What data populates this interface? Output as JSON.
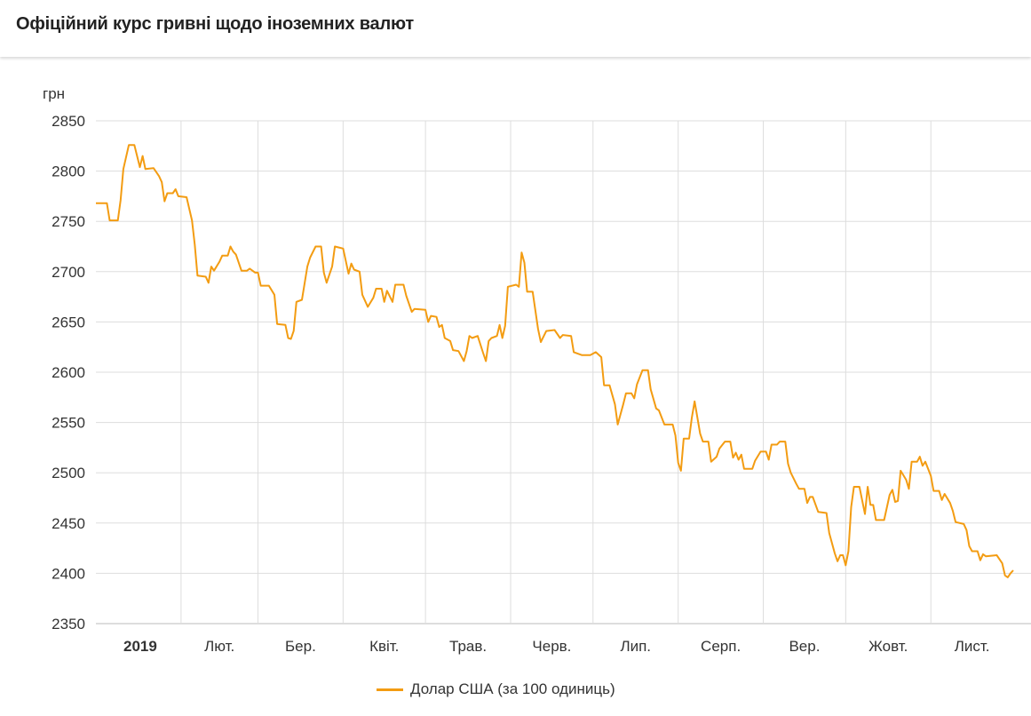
{
  "header": {
    "title": "Офіційний курс гривні щодо іноземних валют"
  },
  "chart_data": {
    "type": "line",
    "ylabel": "грн",
    "ylim": [
      2350,
      2850
    ],
    "yticks": [
      2350,
      2400,
      2450,
      2500,
      2550,
      2600,
      2650,
      2700,
      2750,
      2800,
      2850
    ],
    "xlim": [
      "2019-01-01",
      "2019-12-01"
    ],
    "xticks": [
      {
        "label": "2019",
        "bold": true
      },
      {
        "label": "Лют."
      },
      {
        "label": "Бер."
      },
      {
        "label": "Квіт."
      },
      {
        "label": "Трав."
      },
      {
        "label": "Черв."
      },
      {
        "label": "Лип."
      },
      {
        "label": "Серп."
      },
      {
        "label": "Вер."
      },
      {
        "label": "Жовт."
      },
      {
        "label": "Лист."
      }
    ],
    "grid": true,
    "legend_position": "bottom",
    "series": [
      {
        "name": "Долар США (за 100 одиниць)",
        "color": "#f39c12",
        "points": [
          [
            "2019-01-01",
            2768
          ],
          [
            "2019-01-05",
            2768
          ],
          [
            "2019-01-06",
            2751
          ],
          [
            "2019-01-09",
            2751
          ],
          [
            "2019-01-10",
            2771
          ],
          [
            "2019-01-11",
            2802
          ],
          [
            "2019-01-13",
            2826
          ],
          [
            "2019-01-15",
            2826
          ],
          [
            "2019-01-17",
            2804
          ],
          [
            "2019-01-18",
            2815
          ],
          [
            "2019-01-19",
            2802
          ],
          [
            "2019-01-22",
            2803
          ],
          [
            "2019-01-24",
            2795
          ],
          [
            "2019-01-25",
            2789
          ],
          [
            "2019-01-26",
            2770
          ],
          [
            "2019-01-27",
            2778
          ],
          [
            "2019-01-29",
            2778
          ],
          [
            "2019-01-30",
            2782
          ],
          [
            "2019-01-31",
            2775
          ],
          [
            "2019-02-03",
            2774
          ],
          [
            "2019-02-05",
            2751
          ],
          [
            "2019-02-06",
            2727
          ],
          [
            "2019-02-07",
            2696
          ],
          [
            "2019-02-10",
            2695
          ],
          [
            "2019-02-11",
            2689
          ],
          [
            "2019-02-12",
            2705
          ],
          [
            "2019-02-13",
            2701
          ],
          [
            "2019-02-15",
            2710
          ],
          [
            "2019-02-16",
            2716
          ],
          [
            "2019-02-18",
            2716
          ],
          [
            "2019-02-19",
            2725
          ],
          [
            "2019-02-20",
            2720
          ],
          [
            "2019-02-21",
            2717
          ],
          [
            "2019-02-23",
            2701
          ],
          [
            "2019-02-25",
            2701
          ],
          [
            "2019-02-26",
            2703
          ],
          [
            "2019-02-28",
            2699
          ],
          [
            "2019-03-01",
            2699
          ],
          [
            "2019-03-02",
            2686
          ],
          [
            "2019-03-05",
            2686
          ],
          [
            "2019-03-07",
            2677
          ],
          [
            "2019-03-08",
            2648
          ],
          [
            "2019-03-11",
            2647
          ],
          [
            "2019-03-12",
            2634
          ],
          [
            "2019-03-13",
            2633
          ],
          [
            "2019-03-14",
            2641
          ],
          [
            "2019-03-15",
            2670
          ],
          [
            "2019-03-17",
            2672
          ],
          [
            "2019-03-19",
            2705
          ],
          [
            "2019-03-20",
            2714
          ],
          [
            "2019-03-22",
            2725
          ],
          [
            "2019-03-24",
            2725
          ],
          [
            "2019-03-25",
            2699
          ],
          [
            "2019-03-26",
            2689
          ],
          [
            "2019-03-28",
            2705
          ],
          [
            "2019-03-29",
            2725
          ],
          [
            "2019-04-01",
            2723
          ],
          [
            "2019-04-03",
            2698
          ],
          [
            "2019-04-04",
            2708
          ],
          [
            "2019-04-05",
            2702
          ],
          [
            "2019-04-07",
            2700
          ],
          [
            "2019-04-08",
            2677
          ],
          [
            "2019-04-10",
            2665
          ],
          [
            "2019-04-12",
            2674
          ],
          [
            "2019-04-13",
            2683
          ],
          [
            "2019-04-15",
            2683
          ],
          [
            "2019-04-16",
            2670
          ],
          [
            "2019-04-17",
            2681
          ],
          [
            "2019-04-19",
            2670
          ],
          [
            "2019-04-20",
            2687
          ],
          [
            "2019-04-23",
            2687
          ],
          [
            "2019-04-24",
            2676
          ],
          [
            "2019-04-26",
            2660
          ],
          [
            "2019-04-27",
            2663
          ],
          [
            "2019-05-01",
            2662
          ],
          [
            "2019-05-02",
            2650
          ],
          [
            "2019-05-03",
            2656
          ],
          [
            "2019-05-05",
            2655
          ],
          [
            "2019-05-06",
            2645
          ],
          [
            "2019-05-07",
            2647
          ],
          [
            "2019-05-08",
            2634
          ],
          [
            "2019-05-10",
            2631
          ],
          [
            "2019-05-11",
            2622
          ],
          [
            "2019-05-13",
            2621
          ],
          [
            "2019-05-15",
            2611
          ],
          [
            "2019-05-16",
            2621
          ],
          [
            "2019-05-17",
            2636
          ],
          [
            "2019-05-18",
            2634
          ],
          [
            "2019-05-20",
            2636
          ],
          [
            "2019-05-22",
            2619
          ],
          [
            "2019-05-23",
            2611
          ],
          [
            "2019-05-24",
            2631
          ],
          [
            "2019-05-25",
            2634
          ],
          [
            "2019-05-27",
            2636
          ],
          [
            "2019-05-28",
            2647
          ],
          [
            "2019-05-29",
            2634
          ],
          [
            "2019-05-30",
            2646
          ],
          [
            "2019-05-31",
            2685
          ],
          [
            "2019-06-03",
            2687
          ],
          [
            "2019-06-04",
            2685
          ],
          [
            "2019-06-05",
            2719
          ],
          [
            "2019-06-06",
            2709
          ],
          [
            "2019-06-07",
            2680
          ],
          [
            "2019-06-09",
            2680
          ],
          [
            "2019-06-11",
            2643
          ],
          [
            "2019-06-12",
            2630
          ],
          [
            "2019-06-14",
            2641
          ],
          [
            "2019-06-17",
            2642
          ],
          [
            "2019-06-19",
            2634
          ],
          [
            "2019-06-20",
            2637
          ],
          [
            "2019-06-23",
            2636
          ],
          [
            "2019-06-24",
            2620
          ],
          [
            "2019-06-27",
            2617
          ],
          [
            "2019-06-30",
            2617
          ],
          [
            "2019-07-02",
            2620
          ],
          [
            "2019-07-04",
            2615
          ],
          [
            "2019-07-05",
            2587
          ],
          [
            "2019-07-07",
            2587
          ],
          [
            "2019-07-09",
            2568
          ],
          [
            "2019-07-10",
            2548
          ],
          [
            "2019-07-12",
            2568
          ],
          [
            "2019-07-13",
            2579
          ],
          [
            "2019-07-15",
            2579
          ],
          [
            "2019-07-16",
            2574
          ],
          [
            "2019-07-17",
            2588
          ],
          [
            "2019-07-19",
            2602
          ],
          [
            "2019-07-21",
            2602
          ],
          [
            "2019-07-22",
            2583
          ],
          [
            "2019-07-24",
            2564
          ],
          [
            "2019-07-25",
            2562
          ],
          [
            "2019-07-27",
            2548
          ],
          [
            "2019-07-30",
            2548
          ],
          [
            "2019-07-31",
            2537
          ],
          [
            "2019-08-01",
            2510
          ],
          [
            "2019-08-02",
            2502
          ],
          [
            "2019-08-03",
            2534
          ],
          [
            "2019-08-05",
            2534
          ],
          [
            "2019-08-06",
            2555
          ],
          [
            "2019-08-07",
            2571
          ],
          [
            "2019-08-09",
            2539
          ],
          [
            "2019-08-10",
            2531
          ],
          [
            "2019-08-12",
            2531
          ],
          [
            "2019-08-13",
            2511
          ],
          [
            "2019-08-15",
            2516
          ],
          [
            "2019-08-16",
            2524
          ],
          [
            "2019-08-18",
            2531
          ],
          [
            "2019-08-20",
            2531
          ],
          [
            "2019-08-21",
            2515
          ],
          [
            "2019-08-22",
            2520
          ],
          [
            "2019-08-23",
            2513
          ],
          [
            "2019-08-24",
            2518
          ],
          [
            "2019-08-25",
            2504
          ],
          [
            "2019-08-28",
            2504
          ],
          [
            "2019-08-29",
            2512
          ],
          [
            "2019-08-31",
            2521
          ],
          [
            "2019-09-02",
            2521
          ],
          [
            "2019-09-03",
            2513
          ],
          [
            "2019-09-04",
            2528
          ],
          [
            "2019-09-06",
            2528
          ],
          [
            "2019-09-07",
            2531
          ],
          [
            "2019-09-09",
            2531
          ],
          [
            "2019-09-10",
            2509
          ],
          [
            "2019-09-11",
            2500
          ],
          [
            "2019-09-13",
            2489
          ],
          [
            "2019-09-14",
            2484
          ],
          [
            "2019-09-16",
            2484
          ],
          [
            "2019-09-17",
            2470
          ],
          [
            "2019-09-18",
            2476
          ],
          [
            "2019-09-19",
            2476
          ],
          [
            "2019-09-21",
            2461
          ],
          [
            "2019-09-24",
            2460
          ],
          [
            "2019-09-25",
            2440
          ],
          [
            "2019-09-27",
            2420
          ],
          [
            "2019-09-28",
            2412
          ],
          [
            "2019-09-29",
            2418
          ],
          [
            "2019-09-30",
            2418
          ],
          [
            "2019-10-01",
            2408
          ],
          [
            "2019-10-02",
            2422
          ],
          [
            "2019-10-03",
            2466
          ],
          [
            "2019-10-04",
            2486
          ],
          [
            "2019-10-06",
            2486
          ],
          [
            "2019-10-08",
            2459
          ],
          [
            "2019-10-09",
            2486
          ],
          [
            "2019-10-10",
            2468
          ],
          [
            "2019-10-11",
            2468
          ],
          [
            "2019-10-12",
            2453
          ],
          [
            "2019-10-15",
            2453
          ],
          [
            "2019-10-17",
            2478
          ],
          [
            "2019-10-18",
            2483
          ],
          [
            "2019-10-19",
            2471
          ],
          [
            "2019-10-20",
            2472
          ],
          [
            "2019-10-21",
            2502
          ],
          [
            "2019-10-23",
            2493
          ],
          [
            "2019-10-24",
            2484
          ],
          [
            "2019-10-25",
            2511
          ],
          [
            "2019-10-27",
            2511
          ],
          [
            "2019-10-28",
            2516
          ],
          [
            "2019-10-29",
            2507
          ],
          [
            "2019-10-30",
            2511
          ],
          [
            "2019-11-01",
            2497
          ],
          [
            "2019-11-02",
            2482
          ],
          [
            "2019-11-04",
            2482
          ],
          [
            "2019-11-05",
            2473
          ],
          [
            "2019-11-06",
            2479
          ],
          [
            "2019-11-08",
            2470
          ],
          [
            "2019-11-09",
            2462
          ],
          [
            "2019-11-10",
            2451
          ],
          [
            "2019-11-13",
            2449
          ],
          [
            "2019-11-14",
            2443
          ],
          [
            "2019-11-15",
            2427
          ],
          [
            "2019-11-16",
            2422
          ],
          [
            "2019-11-18",
            2422
          ],
          [
            "2019-11-19",
            2413
          ],
          [
            "2019-11-20",
            2419
          ],
          [
            "2019-11-21",
            2417
          ],
          [
            "2019-11-25",
            2418
          ],
          [
            "2019-11-27",
            2410
          ],
          [
            "2019-11-28",
            2398
          ],
          [
            "2019-11-29",
            2396
          ],
          [
            "2019-11-30",
            2400
          ],
          [
            "2019-12-01",
            2403
          ]
        ]
      }
    ]
  }
}
